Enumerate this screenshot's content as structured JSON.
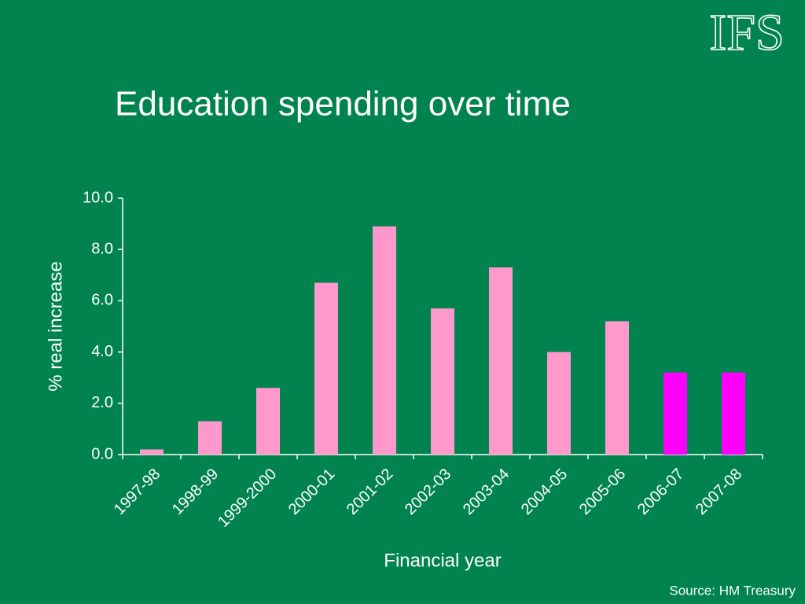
{
  "logo": "IFS",
  "source": "Source: HM Treasury",
  "chart_data": {
    "type": "bar",
    "title": "Education spending over time",
    "x_label": "Financial year",
    "y_label": "% real increase",
    "categories": [
      "1997-98",
      "1998-99",
      "1999-2000",
      "2000-01",
      "2001-02",
      "2002-03",
      "2003-04",
      "2004-05",
      "2005-06",
      "2006-07",
      "2007-08"
    ],
    "values": [
      0.2,
      1.3,
      2.6,
      6.7,
      8.9,
      5.7,
      7.3,
      4.0,
      5.2,
      3.2,
      3.2
    ],
    "colors": [
      "#ff99cc",
      "#ff99cc",
      "#ff99cc",
      "#ff99cc",
      "#ff99cc",
      "#ff99cc",
      "#ff99cc",
      "#ff99cc",
      "#ff99cc",
      "#ff00ff",
      "#ff00ff"
    ],
    "ylim": [
      0,
      10
    ],
    "yticks": [
      {
        "value": 0,
        "label": "0.0"
      },
      {
        "value": 2,
        "label": "2.0"
      },
      {
        "value": 4,
        "label": "4.0"
      },
      {
        "value": 6,
        "label": "6.0"
      },
      {
        "value": 8,
        "label": "8.0"
      },
      {
        "value": 10,
        "label": "10.0"
      }
    ],
    "grid": false
  }
}
